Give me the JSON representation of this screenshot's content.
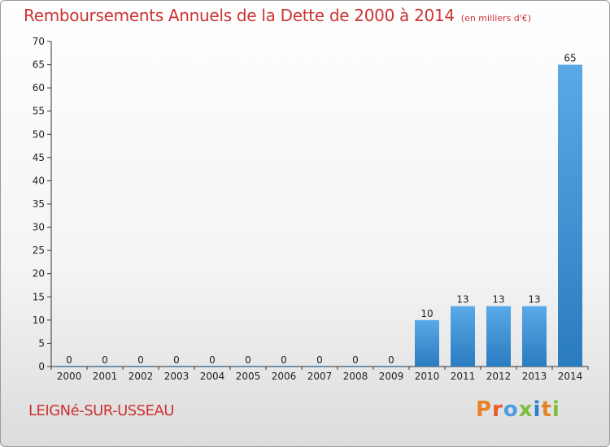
{
  "header": {
    "title": "Remboursements Annuels de la Dette de 2000 à 2014",
    "unit": "(en milliers d'€)"
  },
  "footer": {
    "commune": "LEIGNé-SUR-USSEAU",
    "logo": [
      "P",
      "r",
      "o",
      "x",
      "i",
      "t",
      "i"
    ]
  },
  "colors": {
    "bar_light": "#5aa9e8",
    "bar_dark": "#2a7bc0",
    "title": "#cc3333"
  },
  "chart_data": {
    "type": "bar",
    "title": "Remboursements Annuels de la Dette de 2000 à 2014",
    "xlabel": "",
    "ylabel": "",
    "categories": [
      "2000",
      "2001",
      "2002",
      "2003",
      "2004",
      "2005",
      "2006",
      "2007",
      "2008",
      "2009",
      "2010",
      "2011",
      "2012",
      "2013",
      "2014"
    ],
    "values": [
      0,
      0,
      0,
      0,
      0,
      0,
      0,
      0,
      0,
      0,
      10,
      13,
      13,
      13,
      65
    ],
    "ylim": [
      0,
      70
    ],
    "yticks": [
      "0",
      "5",
      "10",
      "15",
      "20",
      "25",
      "30",
      "35",
      "40",
      "45",
      "50",
      "55",
      "60",
      "65",
      "70"
    ],
    "grid": false,
    "legend": "none"
  }
}
